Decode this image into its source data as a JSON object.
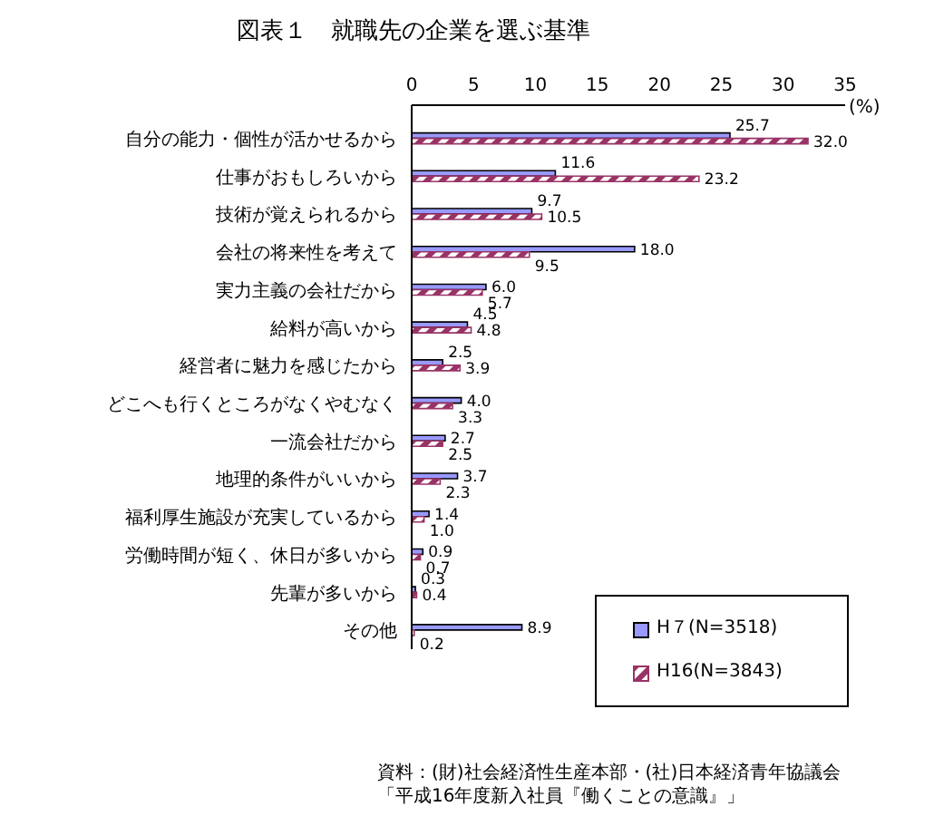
{
  "chart_data": {
    "type": "bar",
    "orientation": "horizontal",
    "title": "図表１　就職先の企業を選ぶ基準",
    "xlabel": "(%)",
    "categories": [
      "自分の能力・個性が活かせるから",
      "仕事がおもしろいから",
      "技術が覚えられるから",
      "会社の将来性を考えて",
      "実力主義の会社だから",
      "給料が高いから",
      "経営者に魅力を感じたから",
      "どこへも行くところがなくやむなく",
      "一流会社だから",
      "地理的条件がいいから",
      "福利厚生施設が充実しているから",
      "労働時間が短く、休日が多いから",
      "先輩が多いから",
      "その他"
    ],
    "series": [
      {
        "name": "H７(N=3518)",
        "color": "#9999ff",
        "values": [
          25.7,
          11.6,
          9.7,
          18.0,
          6.0,
          4.5,
          2.5,
          4.0,
          2.7,
          3.7,
          1.4,
          0.9,
          0.3,
          8.9
        ],
        "value_labels": [
          "25.7",
          "11.6",
          "9.7",
          "18.0",
          "6.0",
          "4.5",
          "2.5",
          "4.0",
          "2.7",
          "3.7",
          "1.4",
          "0.9",
          "0.3",
          "8.9"
        ]
      },
      {
        "name": "H16(N=3843)",
        "color": "#993366",
        "values": [
          32.0,
          23.2,
          10.5,
          9.5,
          5.7,
          4.8,
          3.9,
          3.3,
          2.5,
          2.3,
          1.0,
          0.7,
          0.4,
          0.2
        ],
        "value_labels": [
          "32.0",
          "23.2",
          "10.5",
          "9.5",
          "5.7",
          "4.8",
          "3.9",
          "3.3",
          "2.5",
          "2.3",
          "1.0",
          "0.7",
          "0.4",
          "0.2"
        ]
      }
    ],
    "xlim": [
      0,
      35
    ],
    "xticks": [
      0,
      5,
      10,
      15,
      20,
      25,
      30,
      35
    ],
    "grid": false,
    "legend": "bottom right",
    "annotations": [
      "資料：(財)社会経済性生産本部・(社)日本経済青年協議会",
      "「平成16年度新入社員『働くことの意識』」"
    ]
  }
}
